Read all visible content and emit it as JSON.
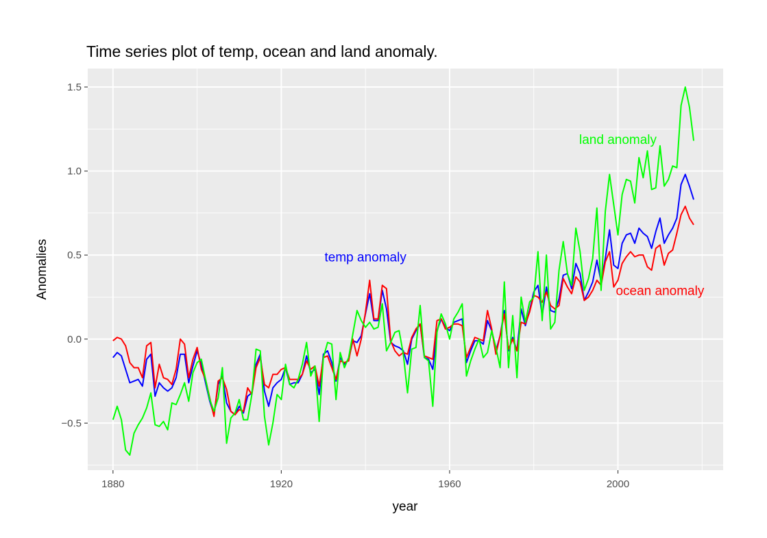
{
  "chart_data": {
    "type": "line",
    "title": "Time series plot of temp, ocean and land anomaly.",
    "xlabel": "year",
    "ylabel": "Anomalies",
    "xlim": [
      1874,
      2025
    ],
    "ylim": [
      -0.78,
      1.61
    ],
    "x_ticks": [
      1880,
      1920,
      1960,
      2000
    ],
    "y_ticks": [
      -0.5,
      0.0,
      0.5,
      1.0,
      1.5
    ],
    "x_tick_labels": [
      "1880",
      "1920",
      "1960",
      "2000"
    ],
    "y_tick_labels": [
      "−0.5",
      "0.0",
      "0.5",
      "1.0",
      "1.5"
    ],
    "grid": true,
    "legend": "none",
    "x": [
      1880,
      1881,
      1882,
      1883,
      1884,
      1885,
      1886,
      1887,
      1888,
      1889,
      1890,
      1891,
      1892,
      1893,
      1894,
      1895,
      1896,
      1897,
      1898,
      1899,
      1900,
      1901,
      1902,
      1903,
      1904,
      1905,
      1906,
      1907,
      1908,
      1909,
      1910,
      1911,
      1912,
      1913,
      1914,
      1915,
      1916,
      1917,
      1918,
      1919,
      1920,
      1921,
      1922,
      1923,
      1924,
      1925,
      1926,
      1927,
      1928,
      1929,
      1930,
      1931,
      1932,
      1933,
      1934,
      1935,
      1936,
      1937,
      1938,
      1939,
      1940,
      1941,
      1942,
      1943,
      1944,
      1945,
      1946,
      1947,
      1948,
      1949,
      1950,
      1951,
      1952,
      1953,
      1954,
      1955,
      1956,
      1957,
      1958,
      1959,
      1960,
      1961,
      1962,
      1963,
      1964,
      1965,
      1966,
      1967,
      1968,
      1969,
      1970,
      1971,
      1972,
      1973,
      1974,
      1975,
      1976,
      1977,
      1978,
      1979,
      1980,
      1981,
      1982,
      1983,
      1984,
      1985,
      1986,
      1987,
      1988,
      1989,
      1990,
      1991,
      1992,
      1993,
      1994,
      1995,
      1996,
      1997,
      1998,
      1999,
      2000,
      2001,
      2002,
      2003,
      2004,
      2005,
      2006,
      2007,
      2008,
      2009,
      2010,
      2011,
      2012,
      2013,
      2014,
      2015,
      2016,
      2017,
      2018
    ],
    "series": [
      {
        "name": "temp anomaly",
        "color": "#0000ff",
        "values": [
          -0.11,
          -0.08,
          -0.1,
          -0.18,
          -0.26,
          -0.25,
          -0.24,
          -0.28,
          -0.12,
          -0.09,
          -0.34,
          -0.26,
          -0.29,
          -0.31,
          -0.29,
          -0.23,
          -0.09,
          -0.09,
          -0.26,
          -0.16,
          -0.07,
          -0.15,
          -0.26,
          -0.37,
          -0.45,
          -0.27,
          -0.22,
          -0.38,
          -0.43,
          -0.45,
          -0.4,
          -0.44,
          -0.34,
          -0.32,
          -0.15,
          -0.09,
          -0.31,
          -0.4,
          -0.29,
          -0.26,
          -0.24,
          -0.17,
          -0.27,
          -0.26,
          -0.26,
          -0.21,
          -0.1,
          -0.2,
          -0.18,
          -0.33,
          -0.09,
          -0.07,
          -0.14,
          -0.25,
          -0.11,
          -0.15,
          -0.12,
          -0.01,
          -0.02,
          0.02,
          0.15,
          0.27,
          0.11,
          0.11,
          0.29,
          0.18,
          -0.02,
          -0.04,
          -0.05,
          -0.07,
          -0.15,
          0.0,
          0.05,
          0.09,
          -0.11,
          -0.12,
          -0.18,
          0.05,
          0.12,
          0.07,
          0.05,
          0.1,
          0.11,
          0.12,
          -0.14,
          -0.07,
          -0.01,
          -0.01,
          -0.03,
          0.11,
          0.05,
          -0.07,
          0.02,
          0.17,
          -0.07,
          0.01,
          -0.07,
          0.18,
          0.08,
          0.17,
          0.28,
          0.32,
          0.14,
          0.31,
          0.17,
          0.16,
          0.24,
          0.38,
          0.39,
          0.3,
          0.45,
          0.39,
          0.23,
          0.28,
          0.34,
          0.47,
          0.34,
          0.48,
          0.65,
          0.44,
          0.42,
          0.57,
          0.62,
          0.63,
          0.57,
          0.66,
          0.63,
          0.61,
          0.54,
          0.64,
          0.72,
          0.57,
          0.62,
          0.66,
          0.72,
          0.92,
          0.98,
          0.91,
          0.83
        ]
      },
      {
        "name": "ocean anomaly",
        "color": "#ff0000",
        "values": [
          -0.01,
          0.01,
          0.0,
          -0.04,
          -0.14,
          -0.17,
          -0.17,
          -0.23,
          -0.04,
          -0.02,
          -0.29,
          -0.15,
          -0.23,
          -0.24,
          -0.27,
          -0.18,
          0.0,
          -0.03,
          -0.23,
          -0.12,
          -0.05,
          -0.18,
          -0.24,
          -0.35,
          -0.46,
          -0.25,
          -0.23,
          -0.3,
          -0.43,
          -0.45,
          -0.42,
          -0.43,
          -0.29,
          -0.33,
          -0.17,
          -0.11,
          -0.27,
          -0.29,
          -0.21,
          -0.21,
          -0.18,
          -0.17,
          -0.24,
          -0.24,
          -0.24,
          -0.21,
          -0.13,
          -0.18,
          -0.16,
          -0.28,
          -0.11,
          -0.1,
          -0.17,
          -0.24,
          -0.13,
          -0.14,
          -0.13,
          0.0,
          -0.1,
          0.0,
          0.16,
          0.35,
          0.12,
          0.12,
          0.32,
          0.3,
          -0.01,
          -0.07,
          -0.1,
          -0.08,
          -0.09,
          0.01,
          0.06,
          0.09,
          -0.1,
          -0.11,
          -0.12,
          0.11,
          0.12,
          0.06,
          0.07,
          0.09,
          0.09,
          0.08,
          -0.11,
          -0.05,
          0.01,
          0.0,
          -0.01,
          0.17,
          0.06,
          -0.09,
          0.02,
          0.15,
          -0.06,
          0.0,
          -0.07,
          0.1,
          0.09,
          0.16,
          0.26,
          0.25,
          0.22,
          0.28,
          0.2,
          0.18,
          0.2,
          0.36,
          0.31,
          0.27,
          0.37,
          0.34,
          0.23,
          0.25,
          0.29,
          0.35,
          0.32,
          0.46,
          0.52,
          0.31,
          0.35,
          0.45,
          0.49,
          0.52,
          0.49,
          0.5,
          0.5,
          0.43,
          0.41,
          0.54,
          0.56,
          0.44,
          0.51,
          0.53,
          0.63,
          0.74,
          0.79,
          0.72,
          0.68
        ]
      },
      {
        "name": "land anomaly",
        "color": "#00ff00",
        "values": [
          -0.48,
          -0.4,
          -0.48,
          -0.66,
          -0.69,
          -0.56,
          -0.51,
          -0.47,
          -0.41,
          -0.32,
          -0.51,
          -0.52,
          -0.49,
          -0.54,
          -0.38,
          -0.39,
          -0.33,
          -0.26,
          -0.37,
          -0.2,
          -0.14,
          -0.12,
          -0.24,
          -0.36,
          -0.43,
          -0.35,
          -0.17,
          -0.62,
          -0.47,
          -0.44,
          -0.36,
          -0.48,
          -0.48,
          -0.33,
          -0.06,
          -0.07,
          -0.46,
          -0.63,
          -0.5,
          -0.33,
          -0.36,
          -0.15,
          -0.27,
          -0.29,
          -0.24,
          -0.15,
          -0.02,
          -0.22,
          -0.16,
          -0.49,
          -0.11,
          -0.02,
          -0.03,
          -0.36,
          -0.08,
          -0.17,
          -0.11,
          0.03,
          0.17,
          0.11,
          0.07,
          0.1,
          0.06,
          0.07,
          0.21,
          -0.07,
          -0.02,
          0.04,
          0.05,
          -0.09,
          -0.32,
          -0.06,
          -0.05,
          0.2,
          -0.11,
          -0.13,
          -0.4,
          0.04,
          0.15,
          0.09,
          0.0,
          0.12,
          0.16,
          0.21,
          -0.22,
          -0.13,
          -0.06,
          0.0,
          -0.11,
          -0.08,
          0.05,
          -0.05,
          -0.17,
          0.34,
          -0.17,
          0.14,
          -0.23,
          0.25,
          0.1,
          0.22,
          0.25,
          0.52,
          0.11,
          0.5,
          0.06,
          0.1,
          0.41,
          0.58,
          0.39,
          0.32,
          0.66,
          0.52,
          0.29,
          0.36,
          0.48,
          0.78,
          0.29,
          0.76,
          0.98,
          0.8,
          0.62,
          0.86,
          0.95,
          0.94,
          0.81,
          1.08,
          0.96,
          1.12,
          0.89,
          0.9,
          1.15,
          0.91,
          0.95,
          1.03,
          1.02,
          1.39,
          1.5,
          1.38,
          1.18
        ]
      }
    ],
    "annotations": [
      {
        "text": "temp anomaly",
        "x": 1940,
        "y": 0.49,
        "color": "#0000ff"
      },
      {
        "text": "ocean anomaly",
        "x": 2010,
        "y": 0.29,
        "color": "#ff0000"
      },
      {
        "text": "land anomaly",
        "x": 2000,
        "y": 1.19,
        "color": "#00ff00"
      }
    ]
  }
}
